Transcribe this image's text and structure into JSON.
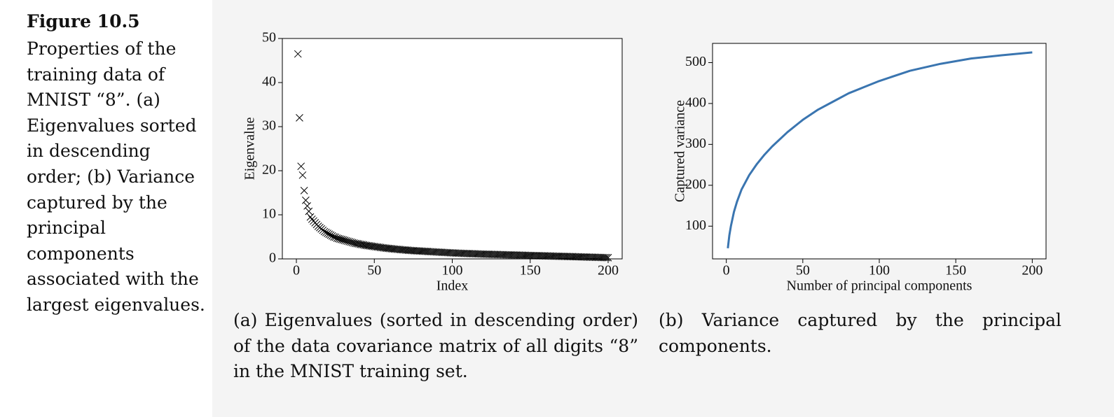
{
  "figure": {
    "label": "Figure 10.5",
    "caption": "Properties of the training data of MNIST “8”. (a) Eigenvalues sorted in descending order; (b) Variance captured by the principal components associated with the largest eigenvalues.",
    "subcaptions": [
      "(a) Eigenvalues (sorted in descending order) of the data covariance matrix of all digits “8” in the MNIST training set.",
      "(b) Variance captured by the principal components."
    ]
  },
  "chart_data": [
    {
      "type": "scatter",
      "x_label": "Index",
      "y_label": "Eigenvalue",
      "color": "#000000",
      "x": [
        1,
        2,
        3,
        4,
        5,
        6,
        7,
        8,
        9,
        10,
        11,
        12,
        13,
        14,
        15,
        16,
        17,
        18,
        19,
        20,
        21,
        22,
        23,
        24,
        25,
        26,
        27,
        28,
        29,
        30,
        31,
        32,
        33,
        34,
        35,
        36,
        37,
        38,
        39,
        40,
        41,
        42,
        43,
        44,
        45,
        46,
        47,
        48,
        49,
        50,
        51,
        52,
        53,
        54,
        55,
        56,
        57,
        58,
        59,
        60,
        61,
        62,
        63,
        64,
        65,
        66,
        67,
        68,
        69,
        70,
        71,
        72,
        73,
        74,
        75,
        76,
        77,
        78,
        79,
        80,
        81,
        82,
        83,
        84,
        85,
        86,
        87,
        88,
        89,
        90,
        91,
        92,
        93,
        94,
        95,
        96,
        97,
        98,
        99,
        100,
        101,
        102,
        103,
        104,
        105,
        106,
        107,
        108,
        109,
        110,
        111,
        112,
        113,
        114,
        115,
        116,
        117,
        118,
        119,
        120,
        121,
        122,
        123,
        124,
        125,
        126,
        127,
        128,
        129,
        130,
        131,
        132,
        133,
        134,
        135,
        136,
        137,
        138,
        139,
        140,
        141,
        142,
        143,
        144,
        145,
        146,
        147,
        148,
        149,
        150,
        151,
        152,
        153,
        154,
        155,
        156,
        157,
        158,
        159,
        160,
        161,
        162,
        163,
        164,
        165,
        166,
        167,
        168,
        169,
        170,
        171,
        172,
        173,
        174,
        175,
        176,
        177,
        178,
        179,
        180,
        181,
        182,
        183,
        184,
        185,
        186,
        187,
        188,
        189,
        190,
        191,
        192,
        193,
        194,
        195,
        196,
        197,
        198,
        199,
        200
      ],
      "values": [
        46.5,
        32.0,
        21.0,
        19.0,
        15.5,
        13.3,
        12.0,
        10.8,
        9.5,
        9.0,
        8.6,
        8.2,
        7.8,
        7.4,
        7.1,
        6.8,
        6.5,
        6.2,
        6.0,
        5.8,
        5.6,
        5.4,
        5.2,
        5.0,
        4.9,
        4.7,
        4.6,
        4.5,
        4.4,
        4.3,
        4.2,
        4.1,
        4.0,
        3.9,
        3.8,
        3.7,
        3.6,
        3.5,
        3.45,
        3.4,
        3.3,
        3.25,
        3.2,
        3.1,
        3.05,
        3.0,
        2.95,
        2.9,
        2.85,
        2.8,
        2.75,
        2.7,
        2.65,
        2.6,
        2.55,
        2.5,
        2.45,
        2.42,
        2.38,
        2.34,
        2.3,
        2.26,
        2.22,
        2.19,
        2.16,
        2.13,
        2.1,
        2.07,
        2.04,
        2.01,
        1.98,
        1.95,
        1.92,
        1.89,
        1.86,
        1.84,
        1.82,
        1.8,
        1.78,
        1.76,
        1.74,
        1.72,
        1.7,
        1.68,
        1.66,
        1.64,
        1.62,
        1.6,
        1.58,
        1.56,
        1.54,
        1.52,
        1.5,
        1.48,
        1.46,
        1.44,
        1.42,
        1.4,
        1.38,
        1.36,
        1.34,
        1.32,
        1.3,
        1.29,
        1.28,
        1.26,
        1.25,
        1.24,
        1.22,
        1.21,
        1.2,
        1.18,
        1.17,
        1.16,
        1.14,
        1.13,
        1.12,
        1.1,
        1.09,
        1.08,
        1.07,
        1.06,
        1.05,
        1.04,
        1.03,
        1.02,
        1.01,
        1.0,
        0.99,
        0.98,
        0.97,
        0.96,
        0.95,
        0.94,
        0.93,
        0.92,
        0.91,
        0.9,
        0.89,
        0.88,
        0.87,
        0.86,
        0.85,
        0.84,
        0.83,
        0.82,
        0.81,
        0.8,
        0.79,
        0.78,
        0.77,
        0.76,
        0.75,
        0.74,
        0.73,
        0.72,
        0.71,
        0.7,
        0.69,
        0.68,
        0.67,
        0.66,
        0.65,
        0.64,
        0.63,
        0.62,
        0.61,
        0.6,
        0.59,
        0.58,
        0.57,
        0.56,
        0.55,
        0.54,
        0.53,
        0.52,
        0.51,
        0.5,
        0.49,
        0.48,
        0.47,
        0.46,
        0.45,
        0.44,
        0.43,
        0.42,
        0.41,
        0.4,
        0.39,
        0.38,
        0.37,
        0.36,
        0.35,
        0.34,
        0.33,
        0.32,
        0.31,
        0.3,
        0.29,
        0.28
      ],
      "xlim": [
        -9,
        209
      ],
      "xticks": [
        0,
        50,
        100,
        150,
        200
      ],
      "ylim": [
        0,
        50
      ],
      "yticks": [
        0,
        10,
        20,
        30,
        40,
        50
      ]
    },
    {
      "type": "line",
      "x_label": "Number of principal components",
      "y_label": "Captured variance",
      "color": "#3a75b0",
      "x": [
        1,
        2,
        3,
        5,
        7,
        10,
        15,
        20,
        25,
        30,
        40,
        50,
        60,
        70,
        80,
        90,
        100,
        120,
        140,
        160,
        180,
        200
      ],
      "values": [
        46,
        78,
        100,
        135,
        160,
        190,
        225,
        252,
        275,
        295,
        330,
        360,
        385,
        405,
        425,
        440,
        455,
        480,
        497,
        510,
        518,
        525
      ],
      "xlim": [
        -9,
        209
      ],
      "xticks": [
        0,
        50,
        100,
        150,
        200
      ],
      "ylim": [
        20,
        547
      ],
      "yticks": [
        100,
        200,
        300,
        400,
        500
      ]
    }
  ]
}
